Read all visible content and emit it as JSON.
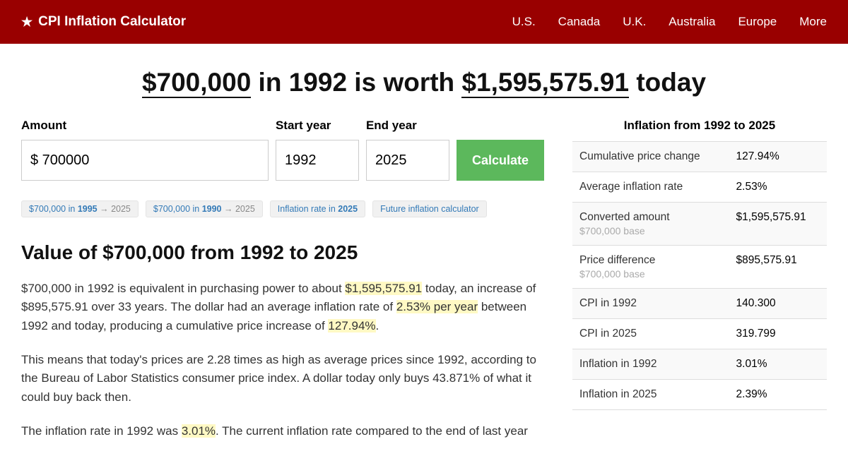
{
  "header": {
    "title": "CPI Inflation Calculator",
    "nav": [
      "U.S.",
      "Canada",
      "U.K.",
      "Australia",
      "Europe",
      "More"
    ]
  },
  "headline": {
    "amount_from": "$700,000",
    "middle1": " in 1992 is worth ",
    "amount_to": "$1,595,575.91",
    "suffix": " today"
  },
  "form": {
    "amount_label": "Amount",
    "amount_value": "$ 700000",
    "start_label": "Start year",
    "start_value": "1992",
    "end_label": "End year",
    "end_value": "2025",
    "calculate": "Calculate"
  },
  "chips": [
    {
      "p1": "$700,000 in ",
      "b": "1995",
      "p2": " → 2025"
    },
    {
      "p1": "$700,000 in ",
      "b": "1990",
      "p2": " → 2025"
    },
    {
      "p1": "Inflation rate in ",
      "b": "2025",
      "p2": ""
    },
    {
      "p1": "Future inflation calculator",
      "b": "",
      "p2": ""
    }
  ],
  "subhead": "Value of $700,000 from 1992 to 2025",
  "paras": {
    "p1a": "$700,000 in 1992 is equivalent in purchasing power to about ",
    "p1h1": "$1,595,575.91",
    "p1b": " today, an increase of $895,575.91 over 33 years. The dollar had an average inflation rate of ",
    "p1h2": "2.53% per year",
    "p1c": " between 1992 and today, producing a cumulative price increase of ",
    "p1h3": "127.94%",
    "p1d": ".",
    "p2": "This means that today's prices are 2.28 times as high as average prices since 1992, according to the Bureau of Labor Statistics consumer price index. A dollar today only buys 43.871% of what it could buy back then.",
    "p3a": "The inflation rate in 1992 was ",
    "p3h1": "3.01%",
    "p3b": ". The current inflation rate compared to the end of last year"
  },
  "sidebar": {
    "title": "Inflation from 1992 to 2025",
    "rows": [
      {
        "label": "Cumulative price change",
        "value": "127.94%",
        "sub": ""
      },
      {
        "label": "Average inflation rate",
        "value": "2.53%",
        "sub": ""
      },
      {
        "label": "Converted amount",
        "value": "$1,595,575.91",
        "sub": "$700,000 base"
      },
      {
        "label": "Price difference",
        "value": "$895,575.91",
        "sub": "$700,000 base"
      },
      {
        "label": "CPI in 1992",
        "value": "140.300",
        "sub": ""
      },
      {
        "label": "CPI in 2025",
        "value": "319.799",
        "sub": ""
      },
      {
        "label": "Inflation in 1992",
        "value": "3.01%",
        "sub": ""
      },
      {
        "label": "Inflation in 2025",
        "value": "2.39%",
        "sub": ""
      }
    ]
  }
}
